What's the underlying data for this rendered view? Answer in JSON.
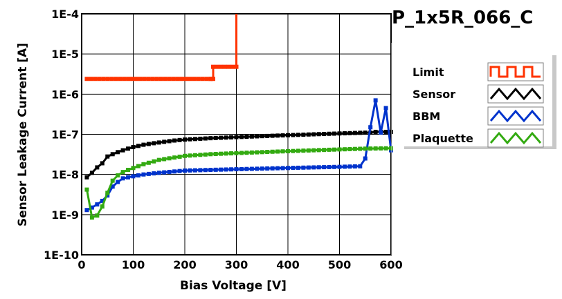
{
  "chart_data": {
    "type": "line",
    "title": "P_1x5R_066_C",
    "xlabel": "Bias Voltage [V]",
    "ylabel": "Sensor Leakage Current [A]",
    "xlim": [
      0,
      600
    ],
    "ylim": [
      1e-10,
      0.0001
    ],
    "yscale": "log",
    "grid": true,
    "legend_position": "right",
    "x_ticks": [
      {
        "value": 0,
        "label": "0"
      },
      {
        "value": 100,
        "label": "100"
      },
      {
        "value": 200,
        "label": "200"
      },
      {
        "value": 300,
        "label": "300"
      },
      {
        "value": 400,
        "label": "400"
      },
      {
        "value": 500,
        "label": "500"
      },
      {
        "value": 600,
        "label": "600"
      }
    ],
    "y_ticks": [
      {
        "value": 0.0001,
        "label": "1E-4"
      },
      {
        "value": 1e-05,
        "label": "1E-5"
      },
      {
        "value": 1e-06,
        "label": "1E-6"
      },
      {
        "value": 1e-07,
        "label": "1E-7"
      },
      {
        "value": 1e-08,
        "label": "1E-8"
      },
      {
        "value": 1e-09,
        "label": "1E-9"
      },
      {
        "value": 1e-10,
        "label": "1E-10"
      }
    ],
    "series": [
      {
        "name": "Limit",
        "color": "#ff3300",
        "step": true,
        "x": [
          10,
          250,
          255,
          300,
          300
        ],
        "y": [
          2.4e-06,
          2.4e-06,
          4.8e-06,
          4.8e-06,
          0.0001
        ]
      },
      {
        "name": "Sensor",
        "color": "#000000",
        "x": [
          10,
          20,
          30,
          40,
          50,
          60,
          70,
          80,
          90,
          100,
          120,
          140,
          160,
          180,
          200,
          250,
          300,
          350,
          400,
          450,
          500,
          550,
          560,
          570,
          580,
          590,
          600
        ],
        "y": [
          8.5e-09,
          1.1e-08,
          1.5e-08,
          1.9e-08,
          2.8e-08,
          3.2e-08,
          3.6e-08,
          4e-08,
          4.4e-08,
          4.8e-08,
          5.5e-08,
          6e-08,
          6.5e-08,
          7e-08,
          7.4e-08,
          8e-08,
          8.5e-08,
          9e-08,
          9.5e-08,
          1e-07,
          1.05e-07,
          1.1e-07,
          1.1e-07,
          1.15e-07,
          1.15e-07,
          1.15e-07,
          1.15e-07
        ]
      },
      {
        "name": "BBM",
        "color": "#0033cc",
        "x": [
          10,
          20,
          30,
          40,
          50,
          60,
          70,
          80,
          100,
          120,
          150,
          200,
          250,
          300,
          350,
          400,
          450,
          500,
          540,
          550,
          560,
          570,
          580,
          590,
          600
        ],
        "y": [
          1.3e-09,
          1.5e-09,
          1.8e-09,
          2.2e-09,
          3e-09,
          5e-09,
          6.5e-09,
          8e-09,
          9e-09,
          1e-08,
          1.1e-08,
          1.25e-08,
          1.3e-08,
          1.35e-08,
          1.4e-08,
          1.45e-08,
          1.5e-08,
          1.55e-08,
          1.6e-08,
          2.5e-08,
          1.5e-07,
          7e-07,
          1.1e-07,
          4.5e-07,
          4e-08
        ]
      },
      {
        "name": "Plaquette",
        "color": "#33aa11",
        "x": [
          10,
          20,
          30,
          40,
          50,
          60,
          70,
          80,
          90,
          100,
          120,
          150,
          200,
          250,
          300,
          350,
          400,
          450,
          500,
          550,
          600
        ],
        "y": [
          4.2e-09,
          8.5e-10,
          9.5e-10,
          1.6e-09,
          3.5e-09,
          7e-09,
          9.5e-09,
          1.15e-08,
          1.3e-08,
          1.45e-08,
          1.8e-08,
          2.3e-08,
          2.9e-08,
          3.2e-08,
          3.4e-08,
          3.6e-08,
          3.8e-08,
          4e-08,
          4.2e-08,
          4.4e-08,
          4.5e-08
        ]
      }
    ]
  }
}
